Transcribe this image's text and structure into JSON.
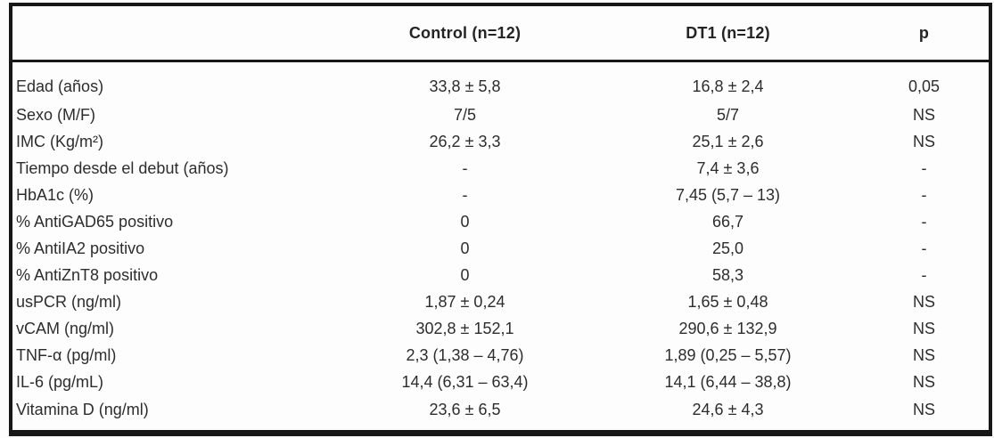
{
  "table": {
    "columns": [
      "",
      "Control (n=12)",
      "DT1 (n=12)",
      "p"
    ],
    "rows": [
      {
        "label": "Edad (años)",
        "control": "33,8 ± 5,8",
        "dt1": "16,8 ± 2,4",
        "p": "0,05"
      },
      {
        "label": "Sexo (M/F)",
        "control": "7/5",
        "dt1": "5/7",
        "p": "NS"
      },
      {
        "label": "IMC (Kg/m²)",
        "control": "26,2 ± 3,3",
        "dt1": "25,1 ± 2,6",
        "p": "NS"
      },
      {
        "label": "Tiempo desde el debut (años)",
        "control": "-",
        "dt1": "7,4 ± 3,6",
        "p": "-"
      },
      {
        "label": "HbA1c (%)",
        "control": "-",
        "dt1": "7,45 (5,7 – 13)",
        "p": "-"
      },
      {
        "label": "% AntiGAD65 positivo",
        "control": "0",
        "dt1": "66,7",
        "p": "-"
      },
      {
        "label": "% AntiIA2 positivo",
        "control": "0",
        "dt1": "25,0",
        "p": "-"
      },
      {
        "label": "% AntiZnT8 positivo",
        "control": "0",
        "dt1": "58,3",
        "p": "-"
      },
      {
        "label": "usPCR (ng/ml)",
        "control": "1,87 ± 0,24",
        "dt1": "1,65 ± 0,48",
        "p": "NS"
      },
      {
        "label": "vCAM (ng/ml)",
        "control": "302,8 ± 152,1",
        "dt1": "290,6 ± 132,9",
        "p": "NS"
      },
      {
        "label": "TNF-α (pg/ml)",
        "control": "2,3 (1,38 – 4,76)",
        "dt1": "1,89 (0,25 – 5,57)",
        "p": "NS"
      },
      {
        "label": "IL-6 (pg/mL)",
        "control": "14,4 (6,31 – 63,4)",
        "dt1": "14,1 (6,44 – 38,8)",
        "p": "NS"
      },
      {
        "label": "Vitamina D (ng/ml)",
        "control": "23,6 ± 6,5",
        "dt1": "24,6 ± 4,3",
        "p": "NS"
      }
    ]
  }
}
